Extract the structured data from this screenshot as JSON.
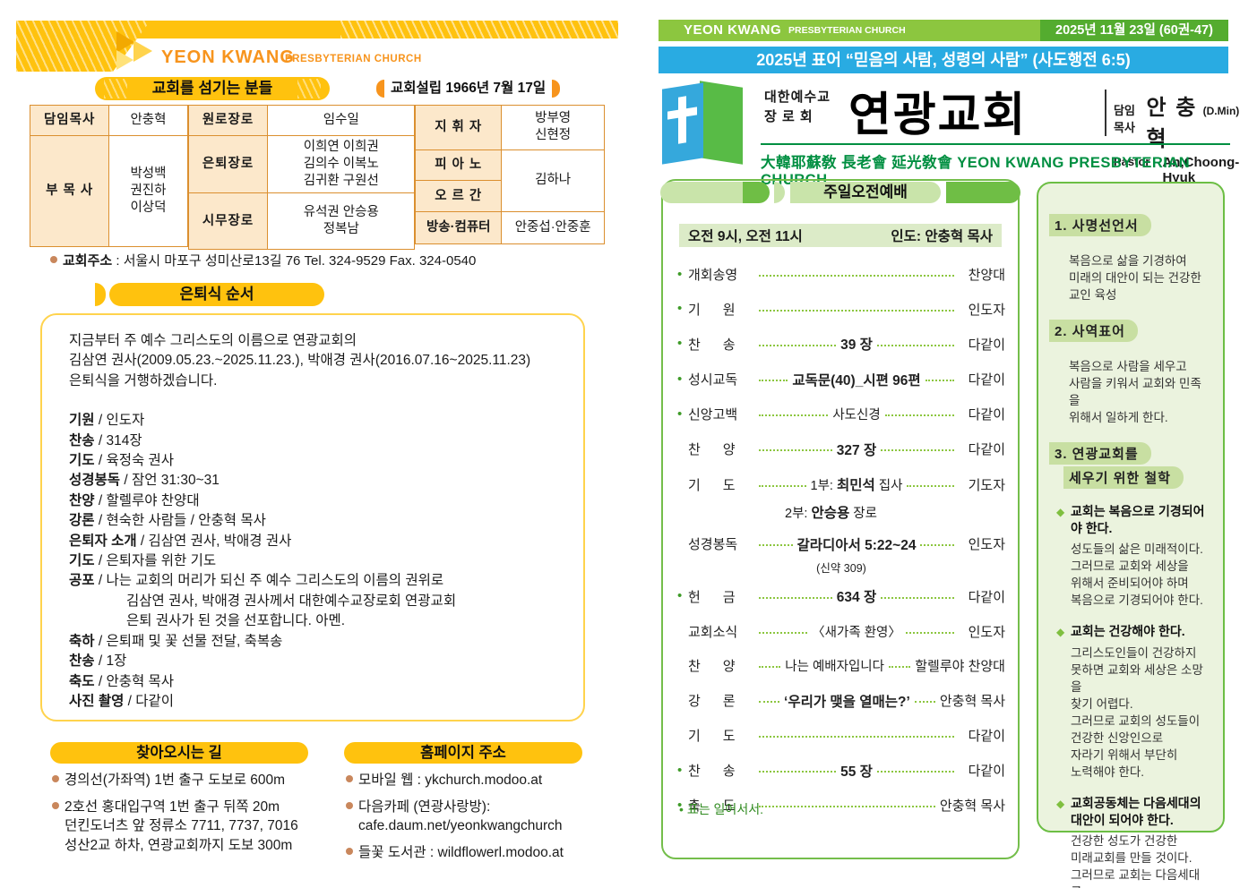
{
  "left": {
    "brand": {
      "name": "YEON KWANG",
      "sub": "PRESBYTERIAN CHURCH"
    },
    "serving_title": "교회를 섬기는 분들",
    "founded": "교회설립 1966년 7월 17일",
    "staff": {
      "g1": [
        {
          "label": "담임목사",
          "value": "안충혁"
        },
        {
          "label": "부 목 사",
          "value": "박성백\n권진하\n이상덕"
        }
      ],
      "g2": [
        {
          "label": "원로장로",
          "value": "임수일"
        },
        {
          "label": "은퇴장로",
          "value": "이희연 이희권\n김의수 이복노\n김귀환 구원선"
        },
        {
          "label": "시무장로",
          "value": "유석권 안승용\n정복남"
        }
      ],
      "g3": {
        "conductor_label": "지 휘 자",
        "conductor": "방부영\n신현정",
        "piano_label": "피 아 노",
        "organ_label": "오 르 간",
        "piano_organ": "김하나",
        "av_label": "방송·컴퓨터",
        "av": "안중섭·안중훈"
      }
    },
    "address_label": "교회주소",
    "address_value": ":  서울시 마포구 성미산로13길 76    Tel. 324-9529    Fax. 324-0540",
    "retirement": {
      "title": "은퇴식 순서",
      "intro": [
        "지금부터 주 예수 그리스도의 이름으로 연광교회의",
        "김삼연 권사(2009.05.23.~2025.11.23.), 박애경 권사(2016.07.16~2025.11.23)",
        "은퇴식을 거행하겠습니다."
      ],
      "items": [
        {
          "b": "기원",
          "t": "인도자"
        },
        {
          "b": "찬송",
          "t": "314장"
        },
        {
          "b": "기도",
          "t": "육정숙 권사"
        },
        {
          "b": "성경봉독",
          "t": "잠언 31:30~31"
        },
        {
          "b": "찬양",
          "t": "할렐루야 찬양대"
        },
        {
          "b": "강론",
          "t": "현숙한 사람들 / 안충혁 목사"
        },
        {
          "b": "은퇴자 소개",
          "t": "김삼연 권사, 박애경 권사"
        },
        {
          "b": "기도",
          "t": "은퇴자를 위한 기도"
        },
        {
          "b": "공포",
          "t": "나는 교회의 머리가 되신 주 예수 그리스도의 이름의 권위로"
        },
        {
          "b": "",
          "t": "김삼연 권사, 박애경 권사께서 대한예수교장로회 연광교회",
          "cont": true
        },
        {
          "b": "",
          "t": "은퇴 권사가 된 것을 선포합니다. 아멘.",
          "cont": true
        },
        {
          "b": "축하",
          "t": "은퇴패 및 꽃 선물 전달, 축복송"
        },
        {
          "b": "찬송",
          "t": "1장"
        },
        {
          "b": "축도",
          "t": "안충혁 목사"
        },
        {
          "b": "사진 촬영",
          "t": "다같이"
        }
      ]
    },
    "directions": {
      "title": "찾아오시는 길",
      "items": [
        [
          "경의선(가좌역) 1번 출구 도보로 600m"
        ],
        [
          "2호선 홍대입구역 1번 출구 뒤쪽 20m",
          "던킨도너츠 앞 정류소 7711, 7737, 7016",
          "성산2교 하차, 연광교회까지 도보 300m"
        ]
      ]
    },
    "homepage": {
      "title": "홈페이지 주소",
      "items": [
        [
          "모바일 웹 : ykchurch.modoo.at"
        ],
        [
          "다음카페 (연광사랑방):",
          "cafe.daum.net/yeonkwangchurch"
        ],
        [
          "들꽃 도서관 : wildflowerl.modoo.at"
        ]
      ]
    }
  },
  "right": {
    "topbar": {
      "name": "YEON KWANG",
      "sub": "PRESBYTERIAN CHURCH",
      "date": "2025년 11월 23일 (60권-47)"
    },
    "motto": "2025년 표어  “믿음의 사람, 성령의 사람”  (사도행전 6:5)",
    "masthead": {
      "denom1": "대한예수교",
      "denom2": "장 로 회",
      "name": "연광교회",
      "pastor_label": "담임목사",
      "pastor_name": "안 충 혁",
      "pastor_degree": "(D.Min)",
      "pastor_label_en": "Pastor",
      "pastor_name_en": "An,Choong-Hyuk",
      "hanja_line": "大韓耶蘇敎 長老會 延光敎會  YEON KWANG PRESBYTERIAN CHURCH"
    },
    "worship": {
      "title": "주일오전예배",
      "time": "오전 9시, 오전 11시",
      "leader": "인도: 안충혁 목사",
      "rows": [
        {
          "bullet": true,
          "label": "개회송영",
          "right": "찬양대"
        },
        {
          "bullet": true,
          "label": "기      원",
          "right": "인도자"
        },
        {
          "bullet": true,
          "label": "찬      송",
          "strong": "39 장",
          "right": "다같이"
        },
        {
          "bullet": true,
          "label": "성시교독",
          "strong": "교독문(40)_시편 96편",
          "right": "다같이"
        },
        {
          "bullet": true,
          "label": "신앙고백",
          "pre": "사도신경",
          "right": "다같이"
        },
        {
          "bullet": false,
          "label": "찬      양",
          "strong": "327 장",
          "right": "다같이"
        },
        {
          "bullet": false,
          "label": "기      도",
          "pre": "1부: ",
          "strong": "최민석",
          "post": " 집사",
          "right": "기도자",
          "sub": {
            "pre": "2부: ",
            "strong": "안승용",
            "post": " 장로"
          }
        },
        {
          "bullet": false,
          "label": "성경봉독",
          "strong": "갈라디아서 5:22~24",
          "right": "인도자",
          "sub2": "(신약 309)"
        },
        {
          "bullet": true,
          "label": "헌      금",
          "strong": "634 장",
          "right": "다같이"
        },
        {
          "bullet": false,
          "label": "교회소식",
          "pre": "〈새가족 환영〉",
          "right": "인도자"
        },
        {
          "bullet": false,
          "label": "찬      양",
          "pre": "나는 예배자입니다",
          "right": "할렐루야 찬양대"
        },
        {
          "bullet": false,
          "label": "강      론",
          "strong": "‘우리가 맺을 열매는?’",
          "right": "안충혁 목사"
        },
        {
          "bullet": false,
          "label": "기      도",
          "right": "다같이"
        },
        {
          "bullet": true,
          "label": "찬      송",
          "strong": "55 장",
          "right": "다같이"
        },
        {
          "bullet": true,
          "label": "축      도",
          "right": "안충혁 목사"
        }
      ],
      "note": "표는 일어서서."
    },
    "sidebar": {
      "sections": [
        {
          "title_lines": [
            "1. 사명선언서"
          ],
          "body": "복음으로 삶을 기경하여\n미래의 대안이 되는 건강한\n교인 육성"
        },
        {
          "title_lines": [
            "2. 사역표어"
          ],
          "body": "복음으로 사람을 세우고\n사람을 키워서 교회와 민족을\n위해서 일하게 한다."
        },
        {
          "title_lines": [
            "3. 연광교회를",
            "세우기 위한 철학"
          ],
          "items": [
            {
              "head": "교회는 복음으로 기경되어야 한다.",
              "body": "성도들의 삶은 미래적이다.\n그러므로 교회와 세상을\n위해서 준비되어야 하며\n복음으로 기경되어야 한다."
            },
            {
              "head": "교회는 건강해야 한다.",
              "body": "그리스도인들이 건강하지\n못하면 교회와 세상은 소망을\n찾기 어렵다.\n그러므로 교회의 성도들이\n건강한 신앙인으로\n자라기 위해서 부단히\n노력해야 한다."
            },
            {
              "head": "교회공동체는 다음세대의 대안이 되어야 한다.",
              "body": "건강한 성도가 건강한\n미래교회를 만들 것이다.\n그러므로 교회는 다음세대를\n위한 대안이 되어야 한다."
            }
          ]
        }
      ]
    }
  }
}
